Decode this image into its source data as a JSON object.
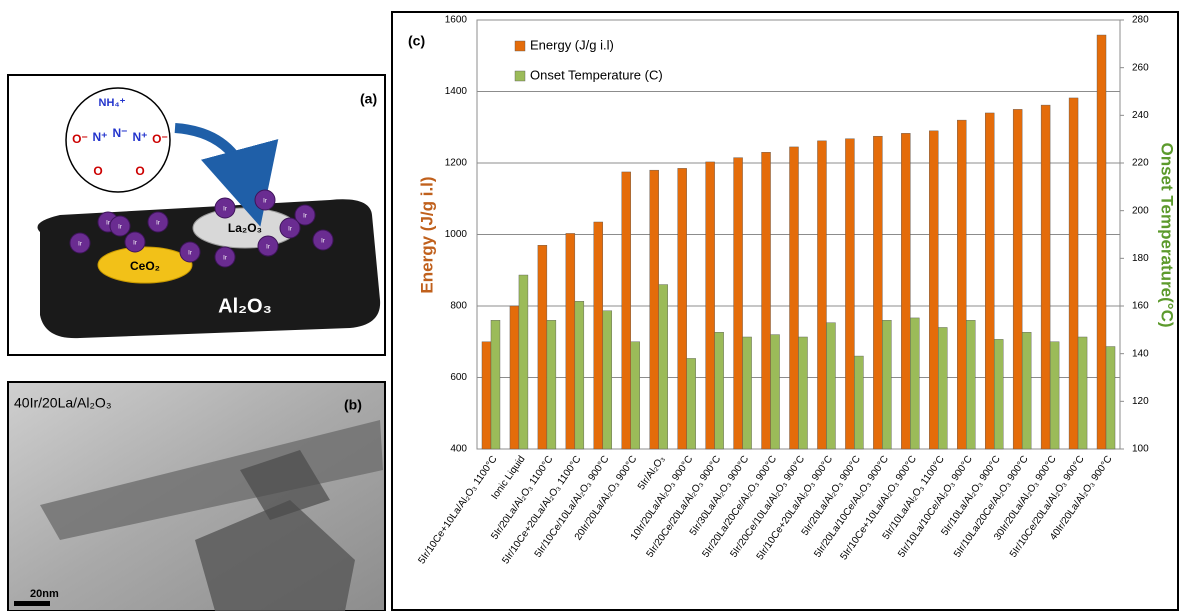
{
  "chart_data": {
    "type": "bar",
    "panel_label": "(c)",
    "y_label": "Energy (J/g i.l)",
    "y2_label": "Onset Temperature(°C)",
    "legend": "upper-left",
    "grid": true,
    "categories": [
      "5Ir/10Ce+10La/Al₂O₃ 1100°C",
      "Ionic Liquid",
      "5Ir/20La/Al₂O₃ 1100°C",
      "5Ir/10Ce+20La/Al₂O₃ 1100°C",
      "5Ir/10Ce/10La/Al₂O₃ 900°C",
      "20Ir/20La/Al₂O₃ 900°C",
      "5Ir/Al₂O₃",
      "10Ir/20La/Al₂O₃ 900°C",
      "5Ir/20Ce/20La/Al₂O₃ 900°C",
      "5Ir/30La/Al₂O₃ 900°C",
      "5Ir/20La/20Ce/Al₂O₃ 900°C",
      "5Ir/20Ce/10La/Al₂O₃ 900°C",
      "5Ir/10Ce+20La/Al₂O₃ 900°C",
      "5Ir/20La/Al₂O₃ 900°C",
      "5Ir/20La/10Ce/Al₂O₃ 900°C",
      "5Ir/10Ce+10La/Al₂O₃ 900°C",
      "5Ir/10La/Al₂O₃ 1100°C",
      "5Ir/10La/10Ce/Al₂O₃ 900°C",
      "5Ir/10La/Al₂O₃ 900°C",
      "5Ir/10La/20Ce/Al₂O₃ 900°C",
      "30Ir/20La/Al₂O₃ 900°C",
      "5Ir/10Ce/20La/Al₂O₃ 900°C",
      "40Ir/20La/Al₂O₃ 900°C"
    ],
    "series": [
      {
        "name": "Energy (J/g i.l)",
        "color": "#e46c0a",
        "values": [
          700,
          800,
          970,
          1003,
          1035,
          1175,
          1180,
          1185,
          1203,
          1215,
          1230,
          1245,
          1262,
          1268,
          1275,
          1283,
          1290,
          1320,
          1340,
          1350,
          1362,
          1382,
          1558
        ]
      },
      {
        "name": "Onset Temperature (C)",
        "color": "#9bbb59",
        "axis": "y2",
        "values": [
          154,
          173,
          154,
          162,
          158,
          145,
          169,
          138,
          149,
          147,
          148,
          147,
          153,
          139,
          154,
          155,
          151,
          154,
          146,
          149,
          145,
          147,
          143
        ]
      }
    ],
    "ylim": [
      400,
      1600
    ],
    "yticks": [
      400,
      600,
      800,
      1000,
      1200,
      1400,
      1600
    ],
    "y2lim": [
      100,
      280
    ],
    "y2ticks": [
      100,
      120,
      140,
      160,
      180,
      200,
      220,
      240,
      260,
      280
    ]
  },
  "panel_a": {
    "label": "(a)",
    "cation": "NH₄⁺",
    "atoms": [
      "O⁻",
      "N⁺",
      "N⁻",
      "N⁺",
      "O⁻",
      "O",
      "O"
    ],
    "particle": "Ir",
    "la_oxide": "La₂O₃",
    "ce_oxide": "CeO₂",
    "support": "Al₂O₃"
  },
  "panel_b": {
    "label": "(b)",
    "sample": "40Ir/20La/Al₂O₃",
    "scale_bar": "20nm"
  }
}
